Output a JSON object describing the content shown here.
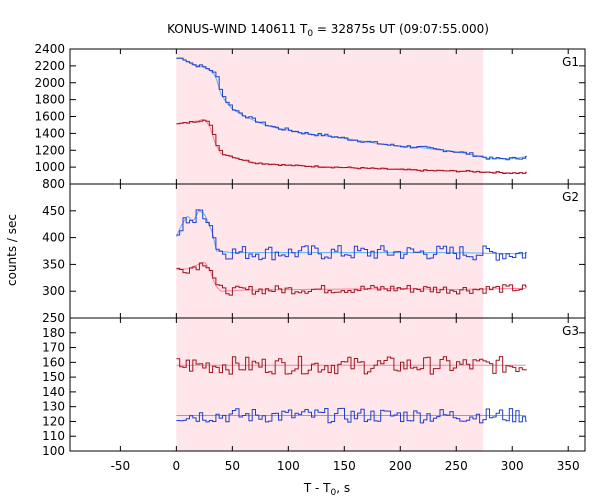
{
  "chart_data": {
    "type": "line",
    "title": "KONUS-WIND 140611 T",
    "title_sub": "0",
    "title_rest": " = 32875s UT (09:07:55.000)",
    "xlabel_main": "T - T",
    "xlabel_sub": "0",
    "xlabel_rest": ", s",
    "ylabel": "counts / sec",
    "xlim": [
      -95,
      365
    ],
    "xticks": [
      -50,
      0,
      50,
      100,
      150,
      200,
      250,
      300,
      350
    ],
    "shaded_interval": [
      0,
      274
    ],
    "colors": {
      "shade": "#ffe6ea",
      "dark_red": "#a0141e",
      "red_fit": "#ff7f9f",
      "blue": "#1f3fcc",
      "cyan_fit": "#5fb0f0"
    },
    "panels": [
      {
        "label": "G1",
        "ylim": [
          800,
          2400
        ],
        "yticks": [
          800,
          1000,
          1200,
          1400,
          1600,
          1800,
          2000,
          2200,
          2400
        ],
        "series": [
          {
            "color": "blue",
            "fit_color": "cyan_fit",
            "noise": 18,
            "t": [
              0,
              5,
              10,
              15,
              20,
              25,
              30,
              35,
              40,
              45,
              50,
              60,
              70,
              80,
              90,
              100,
              110,
              120,
              130,
              140,
              150,
              160,
              170,
              180,
              190,
              200,
              210,
              220,
              230,
              240,
              250,
              260,
              270,
              280,
              290,
              300,
              310,
              313
            ],
            "v": [
              2290,
              2290,
              2250,
              2210,
              2200,
              2180,
              2150,
              2080,
              1860,
              1760,
              1690,
              1610,
              1550,
              1500,
              1460,
              1440,
              1410,
              1390,
              1380,
              1360,
              1340,
              1320,
              1300,
              1280,
              1260,
              1250,
              1240,
              1230,
              1210,
              1200,
              1180,
              1160,
              1130,
              1100,
              1100,
              1100,
              1120,
              1120
            ]
          },
          {
            "color": "dark_red",
            "fit_color": "red_fit",
            "noise": 10,
            "t": [
              0,
              10,
              20,
              25,
              30,
              35,
              40,
              50,
              60,
              70,
              80,
              90,
              100,
              120,
              140,
              160,
              180,
              200,
              220,
              240,
              260,
              280,
              300,
              313
            ],
            "v": [
              1510,
              1530,
              1550,
              1570,
              1480,
              1270,
              1160,
              1120,
              1080,
              1050,
              1040,
              1030,
              1020,
              1010,
              1000,
              990,
              980,
              970,
              960,
              955,
              950,
              940,
              930,
              930
            ]
          }
        ]
      },
      {
        "label": "G2",
        "ylim": [
          250,
          500
        ],
        "yticks": [
          250,
          300,
          350,
          400,
          450
        ],
        "series": [
          {
            "color": "blue",
            "fit_color": "cyan_fit",
            "noise": 14,
            "t": [
              0,
              5,
              10,
              15,
              20,
              25,
              30,
              32,
              36,
              50,
              100,
              150,
              200,
              250,
              300,
              313
            ],
            "v": [
              402,
              425,
              440,
              430,
              450,
              445,
              420,
              410,
              375,
              372,
              372,
              372,
              372,
              372,
              370,
              370
            ]
          },
          {
            "color": "dark_red",
            "fit_color": "red_fit",
            "noise": 8,
            "t": [
              0,
              10,
              20,
              25,
              30,
              35,
              40,
              60,
              100,
              150,
              200,
              250,
              300,
              313
            ],
            "v": [
              340,
              342,
              350,
              355,
              340,
              310,
              300,
              302,
              303,
              304,
              305,
              303,
              305,
              305
            ]
          }
        ]
      },
      {
        "label": "G3",
        "ylim": [
          100,
          190
        ],
        "yticks": [
          100,
          110,
          120,
          130,
          140,
          150,
          160,
          170,
          180
        ],
        "series": [
          {
            "color": "dark_red",
            "fit_color": "red_fit",
            "noise": 6,
            "t": [
              0,
              313
            ],
            "v": [
              158,
              158
            ]
          },
          {
            "color": "blue",
            "fit_color": "cyan_fit",
            "noise": 5,
            "t": [
              0,
              313
            ],
            "v": [
              124,
              124
            ]
          }
        ]
      }
    ]
  }
}
